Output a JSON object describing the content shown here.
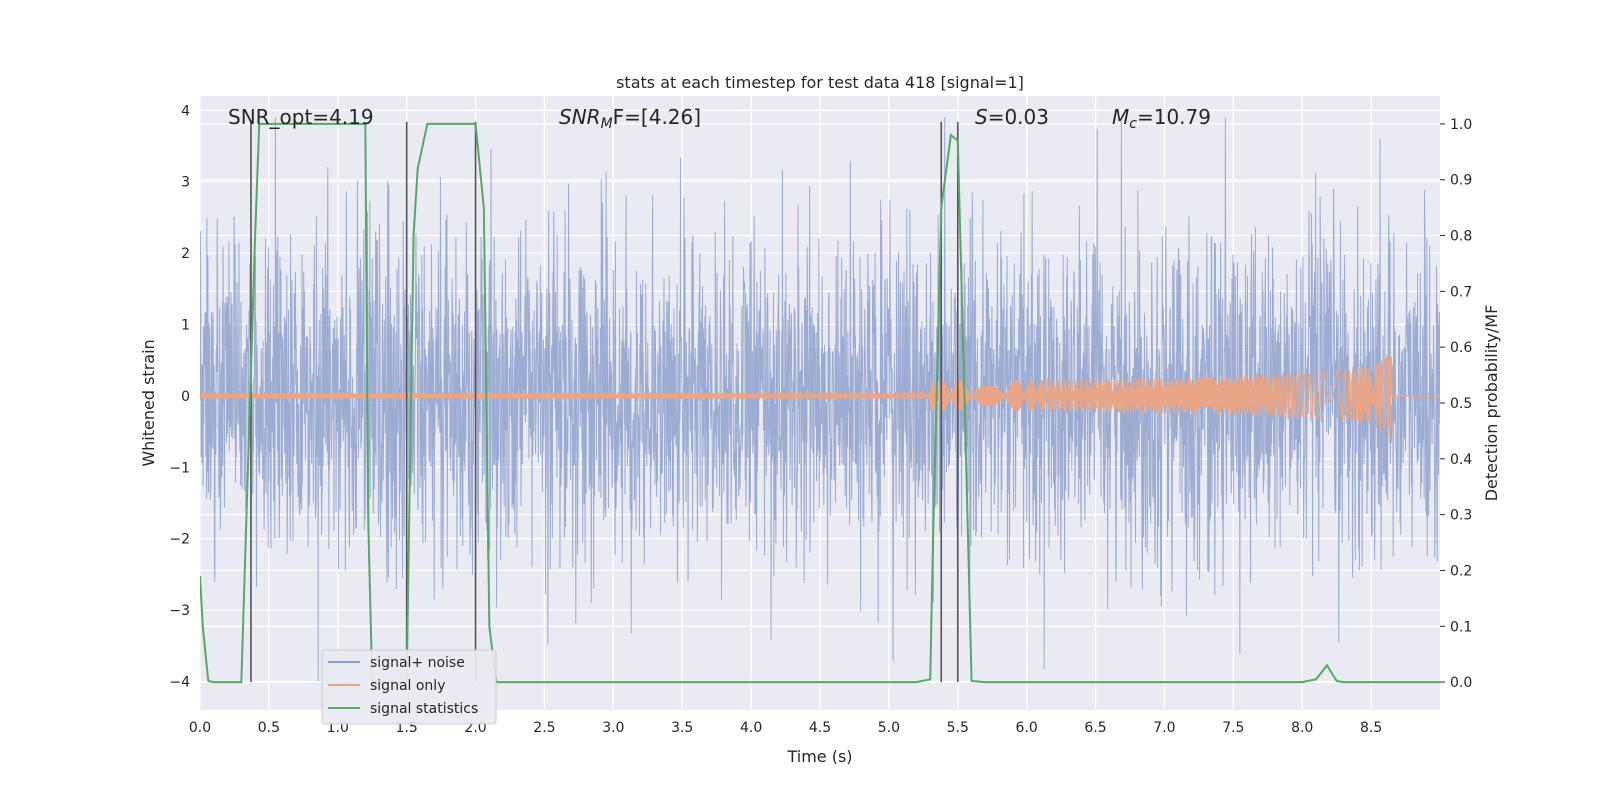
{
  "chart_data": {
    "type": "line",
    "title": "stats at each timestep for test data 418 [signal=1]",
    "xlabel": "Time (s)",
    "ylabel": "Whitened strain",
    "ylabel_right": "Detection probability/MF",
    "xlim": [
      0.0,
      9.0
    ],
    "ylim": [
      -4.4,
      4.2
    ],
    "ylim_right": [
      -0.05,
      1.05
    ],
    "xticks": [
      "0.0",
      "0.5",
      "1.0",
      "1.5",
      "2.0",
      "2.5",
      "3.0",
      "3.5",
      "4.0",
      "4.5",
      "5.0",
      "5.5",
      "6.0",
      "6.5",
      "7.0",
      "7.5",
      "8.0",
      "8.5"
    ],
    "yticks_left": [
      "4",
      "3",
      "2",
      "1",
      "0",
      "−1",
      "−2",
      "−3",
      "−4"
    ],
    "yticks_right": [
      "1.0",
      "0.9",
      "0.8",
      "0.7",
      "0.6",
      "0.5",
      "0.4",
      "0.3",
      "0.2",
      "0.1",
      "0.0"
    ],
    "grid": true,
    "legend_position": "lower-left",
    "annotations": {
      "snr_opt": "SNR_opt=4.19",
      "snr_mf_prefix": "SNR",
      "snr_mf_sub": "M",
      "snr_mf_rest": "F=[4.26]",
      "s_prefix": "S",
      "s_rest": "=0.03",
      "mc_prefix": "M",
      "mc_sub": "c",
      "mc_rest": "=10.79"
    },
    "series": [
      {
        "name": "signal+ noise",
        "color": "#8da0cb",
        "description_values": "whitened noise, approx. Gaussian, amplitude within about ±3.5, sampled densely over 0–9 s"
      },
      {
        "name": "signal only",
        "color": "#e8a587",
        "chirp_end_time": 8.65,
        "chirp_peak_amplitude": 0.75
      },
      {
        "name": "signal statistics",
        "color": "#55a868",
        "x": [
          0.0,
          0.02,
          0.06,
          0.1,
          0.3,
          0.4,
          0.43,
          0.45,
          0.6,
          0.8,
          1.0,
          1.2,
          1.22,
          1.25,
          1.5,
          1.55,
          1.58,
          1.65,
          1.8,
          2.0,
          2.06,
          2.1,
          2.15,
          2.3,
          3.0,
          4.0,
          5.0,
          5.2,
          5.3,
          5.32,
          5.38,
          5.45,
          5.5,
          5.55,
          5.6,
          5.7,
          6.0,
          7.0,
          8.0,
          8.1,
          8.18,
          8.25,
          8.3,
          8.5,
          9.0
        ],
        "values": [
          0.19,
          0.1,
          0.002,
          0.0,
          0.0,
          0.8,
          1.0,
          1.0,
          1.0,
          1.0,
          1.0,
          1.0,
          0.3,
          0.0,
          0.0,
          0.8,
          0.92,
          1.0,
          1.0,
          1.0,
          0.85,
          0.1,
          0.0,
          0.0,
          0.0,
          0.0,
          0.0,
          0.0,
          0.005,
          0.25,
          0.85,
          0.98,
          0.97,
          0.5,
          0.002,
          0.0,
          0.0,
          0.0,
          0.0,
          0.005,
          0.03,
          0.002,
          0.0,
          0.0,
          0.0
        ]
      }
    ],
    "vertical_markers": [
      0.37,
      1.5,
      2.0,
      5.38,
      5.5
    ],
    "vertical_marker_color": "#555555"
  }
}
